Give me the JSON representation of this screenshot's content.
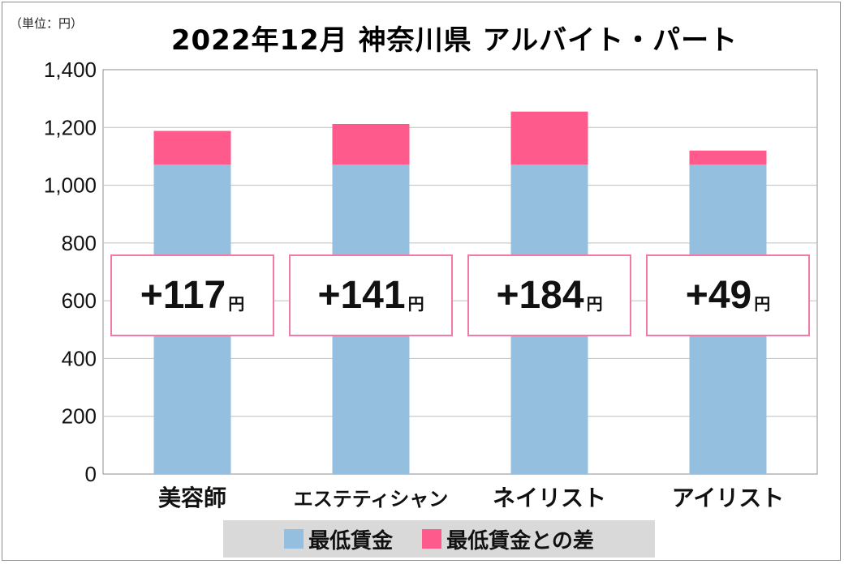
{
  "unit_label": "（単位：円）",
  "title": "2022年12月 神奈川県 アルバイト・パート",
  "colors": {
    "base": "#95bfdf",
    "diff": "#ff5a8c",
    "box_border": "#f07aa8",
    "grid": "#bfbfbf"
  },
  "chart_data": {
    "type": "bar",
    "stacked": true,
    "categories": [
      "美容師",
      "エステティシャン",
      "ネイリスト",
      "アイリスト"
    ],
    "series": [
      {
        "name": "最低賃金",
        "values": [
          1071,
          1071,
          1071,
          1071
        ]
      },
      {
        "name": "最低賃金との差",
        "values": [
          117,
          141,
          184,
          49
        ]
      }
    ],
    "yticks": [
      "0",
      "200",
      "400",
      "600",
      "800",
      "1,000",
      "1,200",
      "1,400"
    ],
    "ylim": [
      0,
      1400
    ],
    "grid": true,
    "legend": "bottom",
    "annotations": [
      {
        "num": "+117",
        "unit": "円"
      },
      {
        "num": "+141",
        "unit": "円"
      },
      {
        "num": "+184",
        "unit": "円"
      },
      {
        "num": "+49",
        "unit": "円"
      }
    ]
  }
}
